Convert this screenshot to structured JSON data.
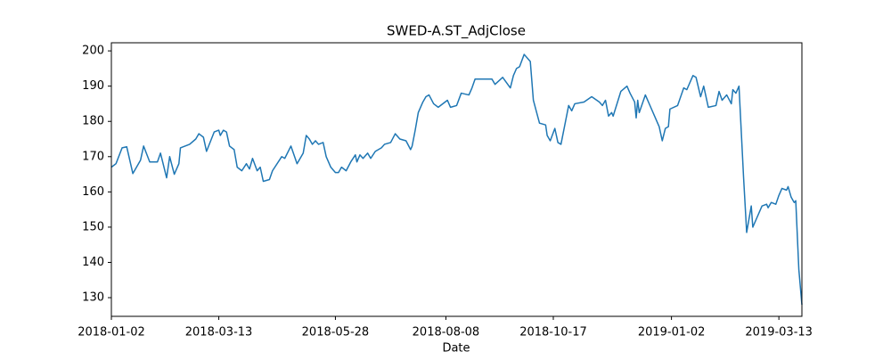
{
  "chart_data": {
    "type": "line",
    "title": "SWED-A.ST_AdjClose",
    "xlabel": "Date",
    "color": "#1f77b4",
    "grid": false,
    "x": [
      "2018-01-02",
      "2018-01-05",
      "2018-01-09",
      "2018-01-12",
      "2018-01-16",
      "2018-01-21",
      "2018-01-23",
      "2018-01-27",
      "2018-02-01",
      "2018-02-03",
      "2018-02-07",
      "2018-02-09",
      "2018-02-12",
      "2018-02-15",
      "2018-02-16",
      "2018-02-22",
      "2018-02-26",
      "2018-02-28",
      "2018-03-03",
      "2018-03-05",
      "2018-03-10",
      "2018-03-13",
      "2018-03-14",
      "2018-03-16",
      "2018-03-18",
      "2018-03-20",
      "2018-03-23",
      "2018-03-25",
      "2018-03-28",
      "2018-03-31",
      "2018-04-02",
      "2018-04-04",
      "2018-04-07",
      "2018-04-09",
      "2018-04-11",
      "2018-04-15",
      "2018-04-17",
      "2018-04-23",
      "2018-04-25",
      "2018-04-29",
      "2018-05-03",
      "2018-05-07",
      "2018-05-09",
      "2018-05-11",
      "2018-05-13",
      "2018-05-15",
      "2018-05-17",
      "2018-05-20",
      "2018-05-22",
      "2018-05-25",
      "2018-05-28",
      "2018-05-30",
      "2018-06-01",
      "2018-06-04",
      "2018-06-07",
      "2018-06-10",
      "2018-06-11",
      "2018-06-13",
      "2018-06-15",
      "2018-06-18",
      "2018-06-20",
      "2018-06-23",
      "2018-06-27",
      "2018-06-29",
      "2018-07-03",
      "2018-07-06",
      "2018-07-09",
      "2018-07-13",
      "2018-07-16",
      "2018-07-17",
      "2018-07-19",
      "2018-07-21",
      "2018-07-24",
      "2018-07-26",
      "2018-07-28",
      "2018-07-31",
      "2018-08-03",
      "2018-08-09",
      "2018-08-11",
      "2018-08-15",
      "2018-08-18",
      "2018-08-23",
      "2018-08-25",
      "2018-08-27",
      "2018-09-01",
      "2018-09-07",
      "2018-09-09",
      "2018-09-14",
      "2018-09-19",
      "2018-09-21",
      "2018-09-23",
      "2018-09-25",
      "2018-09-28",
      "2018-10-02",
      "2018-10-04",
      "2018-10-08",
      "2018-10-12",
      "2018-10-13",
      "2018-10-15",
      "2018-10-18",
      "2018-10-20",
      "2018-10-22",
      "2018-10-27",
      "2018-10-29",
      "2018-10-31",
      "2018-11-06",
      "2018-11-11",
      "2018-11-16",
      "2018-11-18",
      "2018-11-20",
      "2018-11-22",
      "2018-11-24",
      "2018-11-25",
      "2018-11-30",
      "2018-12-04",
      "2018-12-06",
      "2018-12-09",
      "2018-12-10",
      "2018-12-11",
      "2018-12-12",
      "2018-12-16",
      "2018-12-20",
      "2018-12-25",
      "2018-12-27",
      "2018-12-29",
      "2018-12-31",
      "2019-01-01",
      "2019-01-06",
      "2019-01-10",
      "2019-01-12",
      "2019-01-16",
      "2019-01-18",
      "2019-01-21",
      "2019-01-23",
      "2019-01-26",
      "2019-01-31",
      "2019-02-02",
      "2019-02-04",
      "2019-02-07",
      "2019-02-10",
      "2019-02-11",
      "2019-02-13",
      "2019-02-15",
      "2019-02-18",
      "2019-02-20",
      "2019-02-23",
      "2019-02-24",
      "2019-02-26",
      "2019-03-02",
      "2019-03-05",
      "2019-03-06",
      "2019-03-08",
      "2019-03-11",
      "2019-03-13",
      "2019-03-15",
      "2019-03-18",
      "2019-03-19",
      "2019-03-21",
      "2019-03-23",
      "2019-03-24",
      "2019-03-26",
      "2019-03-28"
    ],
    "values": [
      167,
      168,
      172.5,
      172.8,
      165.2,
      169,
      173,
      168.5,
      168.5,
      171,
      164,
      170,
      165,
      168,
      172.5,
      173.5,
      175,
      176.5,
      175.5,
      171.5,
      177,
      177.5,
      176,
      177.5,
      177,
      173,
      172,
      167,
      166,
      168,
      166.5,
      169.5,
      166,
      167,
      163,
      163.5,
      166,
      170,
      169.5,
      173,
      168,
      171,
      176,
      175,
      173.5,
      174.5,
      173.5,
      174,
      170,
      167,
      165.5,
      165.5,
      167,
      166,
      168.5,
      170.5,
      168.5,
      170.5,
      169.5,
      171,
      169.5,
      171.5,
      172.5,
      173.5,
      174,
      176.5,
      175,
      174.5,
      172,
      173,
      177.5,
      182.5,
      185.5,
      187,
      187.5,
      185,
      184,
      186,
      184,
      184.5,
      188,
      187.5,
      189.5,
      192,
      192,
      192,
      190.5,
      192.5,
      189.5,
      193,
      195,
      195.5,
      199,
      197,
      186,
      179.5,
      179,
      176,
      174.5,
      178,
      174,
      173.5,
      184.5,
      183,
      185,
      185.5,
      187,
      185.5,
      184.5,
      186,
      181.5,
      182.5,
      181.5,
      188.5,
      190,
      188,
      185.5,
      181,
      186,
      182.5,
      187.5,
      183.5,
      178.5,
      174.5,
      178,
      178.5,
      183.5,
      184.5,
      189.5,
      189,
      193,
      192.5,
      187,
      190,
      184,
      184.5,
      188.5,
      186,
      187.5,
      185,
      189,
      188,
      190,
      164,
      148.5,
      156,
      150,
      152,
      156,
      156.5,
      155.5,
      157,
      156.5,
      159,
      161,
      160.5,
      161.5,
      158.5,
      157,
      157.5,
      138,
      128
    ],
    "xlim": [
      "2018-01-02",
      "2019-03-28"
    ],
    "xticks": [
      "2018-01-02",
      "2018-03-13",
      "2018-05-28",
      "2018-08-08",
      "2018-10-17",
      "2019-01-02",
      "2019-03-13"
    ],
    "ylim": [
      124.7,
      202.3
    ],
    "yticks": [
      130,
      140,
      150,
      160,
      170,
      180,
      190,
      200
    ]
  }
}
